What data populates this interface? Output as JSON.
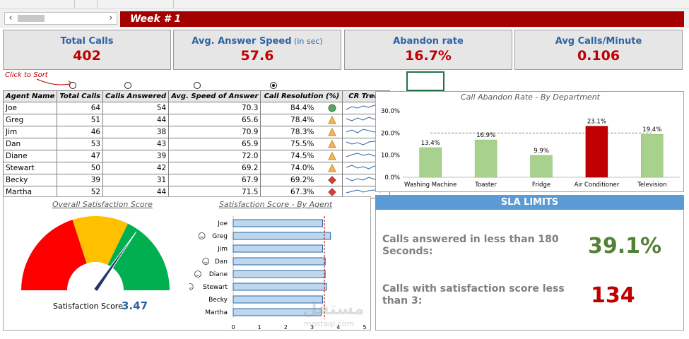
{
  "header": {
    "week_title": "Week # 1"
  },
  "kpis": [
    {
      "title": "Total Calls",
      "sub": "",
      "value": "402"
    },
    {
      "title": "Avg. Answer Speed",
      "sub": "(in sec)",
      "value": "57.6"
    },
    {
      "title": "Abandon rate",
      "sub": "",
      "value": "16.7%"
    },
    {
      "title": "Avg Calls/Minute",
      "sub": "",
      "value": "0.106"
    }
  ],
  "sort": {
    "hint": "Click to Sort",
    "selected_index": 3
  },
  "agent_table": {
    "columns": [
      "Agent Name",
      "Total Calls",
      "Calls Answered",
      "Avg. Speed of Answer",
      "Call Resolution (%)",
      "CR Trend"
    ],
    "rows": [
      {
        "name": "Joe",
        "total": "64",
        "answered": "54",
        "speed": "70.3",
        "resolution": "84.4%",
        "status": "green-circle"
      },
      {
        "name": "Greg",
        "total": "51",
        "answered": "44",
        "speed": "65.6",
        "resolution": "78.4%",
        "status": "orange-triangle"
      },
      {
        "name": "Jim",
        "total": "46",
        "answered": "38",
        "speed": "70.9",
        "resolution": "78.3%",
        "status": "orange-triangle"
      },
      {
        "name": "Dan",
        "total": "53",
        "answered": "43",
        "speed": "65.9",
        "resolution": "75.5%",
        "status": "orange-triangle"
      },
      {
        "name": "Diane",
        "total": "47",
        "answered": "39",
        "speed": "72.0",
        "resolution": "74.5%",
        "status": "orange-triangle"
      },
      {
        "name": "Stewart",
        "total": "50",
        "answered": "42",
        "speed": "69.2",
        "resolution": "74.0%",
        "status": "orange-triangle"
      },
      {
        "name": "Becky",
        "total": "39",
        "answered": "31",
        "speed": "67.9",
        "resolution": "69.2%",
        "status": "red-diamond"
      },
      {
        "name": "Martha",
        "total": "52",
        "answered": "44",
        "speed": "71.5",
        "resolution": "67.3%",
        "status": "red-diamond"
      }
    ]
  },
  "colors": {
    "header_red": "#a50000",
    "kpi_value": "#c00000",
    "kpi_title": "#2e64a4",
    "bar_green": "#a9d18e",
    "bar_red": "#c00000",
    "sla_green": "#548235",
    "sla_blue": "#5b9bd5",
    "bar_blue": "#bdd7ee"
  },
  "chart_data": [
    {
      "type": "bar",
      "title": "Call Abandon Rate - By Department",
      "categories": [
        "Washing Machine",
        "Toaster",
        "Fridge",
        "Air Conditioner",
        "Television"
      ],
      "values": [
        13.4,
        16.9,
        9.9,
        23.1,
        19.4
      ],
      "value_labels": [
        "13.4%",
        "16.9%",
        "9.9%",
        "23.1%",
        "19.4%"
      ],
      "ylim": [
        0,
        30
      ],
      "yticks": [
        "0.0%",
        "10.0%",
        "20.0%",
        "30.0%"
      ],
      "average_line": 20,
      "highlight_index": 3
    },
    {
      "type": "bar",
      "orientation": "horizontal",
      "title": "Satisfaction Score - By Agent",
      "categories": [
        "Joe",
        "Greg",
        "Jim",
        "Dan",
        "Diane",
        "Stewart",
        "Becky",
        "Martha"
      ],
      "smiley": [
        false,
        true,
        false,
        true,
        true,
        true,
        false,
        false
      ],
      "values": [
        3.4,
        3.7,
        3.4,
        3.5,
        3.5,
        3.55,
        3.4,
        3.35
      ],
      "xlim": [
        0,
        5
      ],
      "xticks": [
        "0",
        "1",
        "2",
        "3",
        "4",
        "5"
      ],
      "target_line": 3.47
    }
  ],
  "gauge": {
    "title": "Overall Satisfaction Score",
    "label": "Satisfaction Score:",
    "value": "3.47",
    "numeric_value": 3.47,
    "max": 5
  },
  "sla": {
    "title": "SLA LIMITS",
    "line1_text": "Calls answered in less than 180 Seconds:",
    "line1_value": "39.1%",
    "line2_text": "Calls with satisfaction score less than 3:",
    "line2_value": "134"
  },
  "watermark": {
    "text": "مستقل",
    "sub": "mostaql.com"
  }
}
